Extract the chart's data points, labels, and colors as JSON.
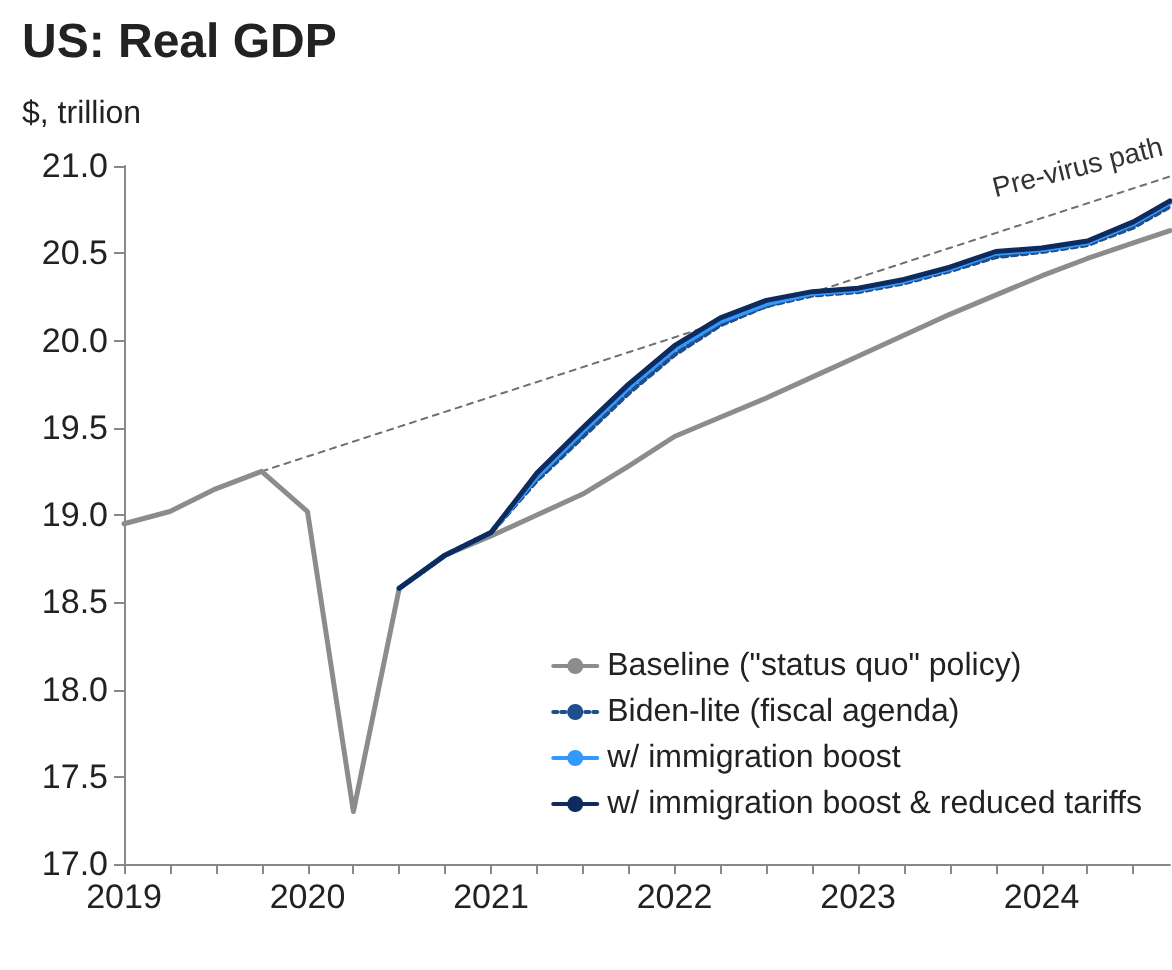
{
  "chart_data": {
    "type": "line",
    "title": "US: Real GDP",
    "ylabel": "$, trillion",
    "xlim": [
      2019,
      2024.7
    ],
    "xticks": [
      {
        "value": 2019,
        "label": "2019"
      },
      {
        "value": 2019.25,
        "label": null
      },
      {
        "value": 2019.5,
        "label": null
      },
      {
        "value": 2019.75,
        "label": null
      },
      {
        "value": 2020,
        "label": "2020"
      },
      {
        "value": 2020.25,
        "label": null
      },
      {
        "value": 2020.5,
        "label": null
      },
      {
        "value": 2020.75,
        "label": null
      },
      {
        "value": 2021,
        "label": "2021"
      },
      {
        "value": 2021.25,
        "label": null
      },
      {
        "value": 2021.5,
        "label": null
      },
      {
        "value": 2021.75,
        "label": null
      },
      {
        "value": 2022,
        "label": "2022"
      },
      {
        "value": 2022.25,
        "label": null
      },
      {
        "value": 2022.5,
        "label": null
      },
      {
        "value": 2022.75,
        "label": null
      },
      {
        "value": 2023,
        "label": "2023"
      },
      {
        "value": 2023.25,
        "label": null
      },
      {
        "value": 2023.5,
        "label": null
      },
      {
        "value": 2023.75,
        "label": null
      },
      {
        "value": 2024,
        "label": "2024"
      },
      {
        "value": 2024.25,
        "label": null
      },
      {
        "value": 2024.5,
        "label": null
      }
    ],
    "ylim": [
      17,
      21
    ],
    "yticks": [
      {
        "value": 17,
        "label": "17.0"
      },
      {
        "value": 17.5,
        "label": "17.5"
      },
      {
        "value": 18,
        "label": "18.0"
      },
      {
        "value": 18.5,
        "label": "18.5"
      },
      {
        "value": 19,
        "label": "19.0"
      },
      {
        "value": 19.5,
        "label": "19.5"
      },
      {
        "value": 20,
        "label": "20.0"
      },
      {
        "value": 20.5,
        "label": "20.5"
      },
      {
        "value": 21,
        "label": "21.0"
      }
    ],
    "grid": false,
    "legend": "bottom right",
    "marker": "none",
    "series": [
      {
        "name": "Pre-virus path",
        "color": "#707070",
        "line_style": "dotted",
        "x": [
          2019.75,
          2024.7
        ],
        "values": [
          19.25,
          20.94
        ]
      },
      {
        "name": "Baseline (\"status quo\" policy)",
        "color": "#8c8c8c",
        "line_style": "solid",
        "x": [
          2019,
          2019.25,
          2019.5,
          2019.75,
          2020,
          2020.25,
          2020.5,
          2020.75,
          2021,
          2021.25,
          2021.5,
          2021.75,
          2022,
          2022.25,
          2022.5,
          2022.75,
          2023,
          2023.25,
          2023.5,
          2023.75,
          2024,
          2024.25,
          2024.5,
          2024.7
        ],
        "values": [
          18.95,
          19.02,
          19.15,
          19.25,
          19.02,
          17.3,
          18.58,
          18.77,
          18.88,
          19.0,
          19.12,
          19.28,
          19.45,
          19.56,
          19.67,
          19.79,
          19.91,
          20.03,
          20.15,
          20.26,
          20.37,
          20.47,
          20.56,
          20.63
        ]
      },
      {
        "name": "Biden-lite (fiscal agenda)",
        "color": "#1f4e8c",
        "line_style": "dotted",
        "x": [
          2020.5,
          2020.75,
          2021,
          2021.25,
          2021.5,
          2021.75,
          2022,
          2022.25,
          2022.5,
          2022.75,
          2023,
          2023.25,
          2023.5,
          2023.75,
          2024,
          2024.25,
          2024.5,
          2024.7
        ],
        "values": [
          18.58,
          18.77,
          18.9,
          19.2,
          19.45,
          19.7,
          19.92,
          20.09,
          20.2,
          20.26,
          20.28,
          20.33,
          20.4,
          20.48,
          20.51,
          20.55,
          20.65,
          20.77
        ]
      },
      {
        "name": "w/ immigration boost",
        "color": "#3399ff",
        "line_style": "solid",
        "x": [
          2020.5,
          2020.75,
          2021,
          2021.25,
          2021.5,
          2021.75,
          2022,
          2022.25,
          2022.5,
          2022.75,
          2023,
          2023.25,
          2023.5,
          2023.75,
          2024,
          2024.25,
          2024.5,
          2024.7
        ],
        "values": [
          18.58,
          18.77,
          18.9,
          19.22,
          19.48,
          19.73,
          19.95,
          20.11,
          20.21,
          20.27,
          20.29,
          20.34,
          20.41,
          20.5,
          20.52,
          20.56,
          20.67,
          20.79
        ]
      },
      {
        "name": "w/ immigration boost & reduced tariffs",
        "color": "#0d2b5c",
        "line_style": "solid",
        "x": [
          2020.5,
          2020.75,
          2021,
          2021.25,
          2021.5,
          2021.75,
          2022,
          2022.25,
          2022.5,
          2022.75,
          2023,
          2023.25,
          2023.5,
          2023.75,
          2024,
          2024.25,
          2024.5,
          2024.7
        ],
        "values": [
          18.58,
          18.77,
          18.9,
          19.24,
          19.5,
          19.75,
          19.97,
          20.13,
          20.23,
          20.28,
          20.3,
          20.35,
          20.42,
          20.51,
          20.53,
          20.57,
          20.68,
          20.8
        ]
      }
    ]
  }
}
